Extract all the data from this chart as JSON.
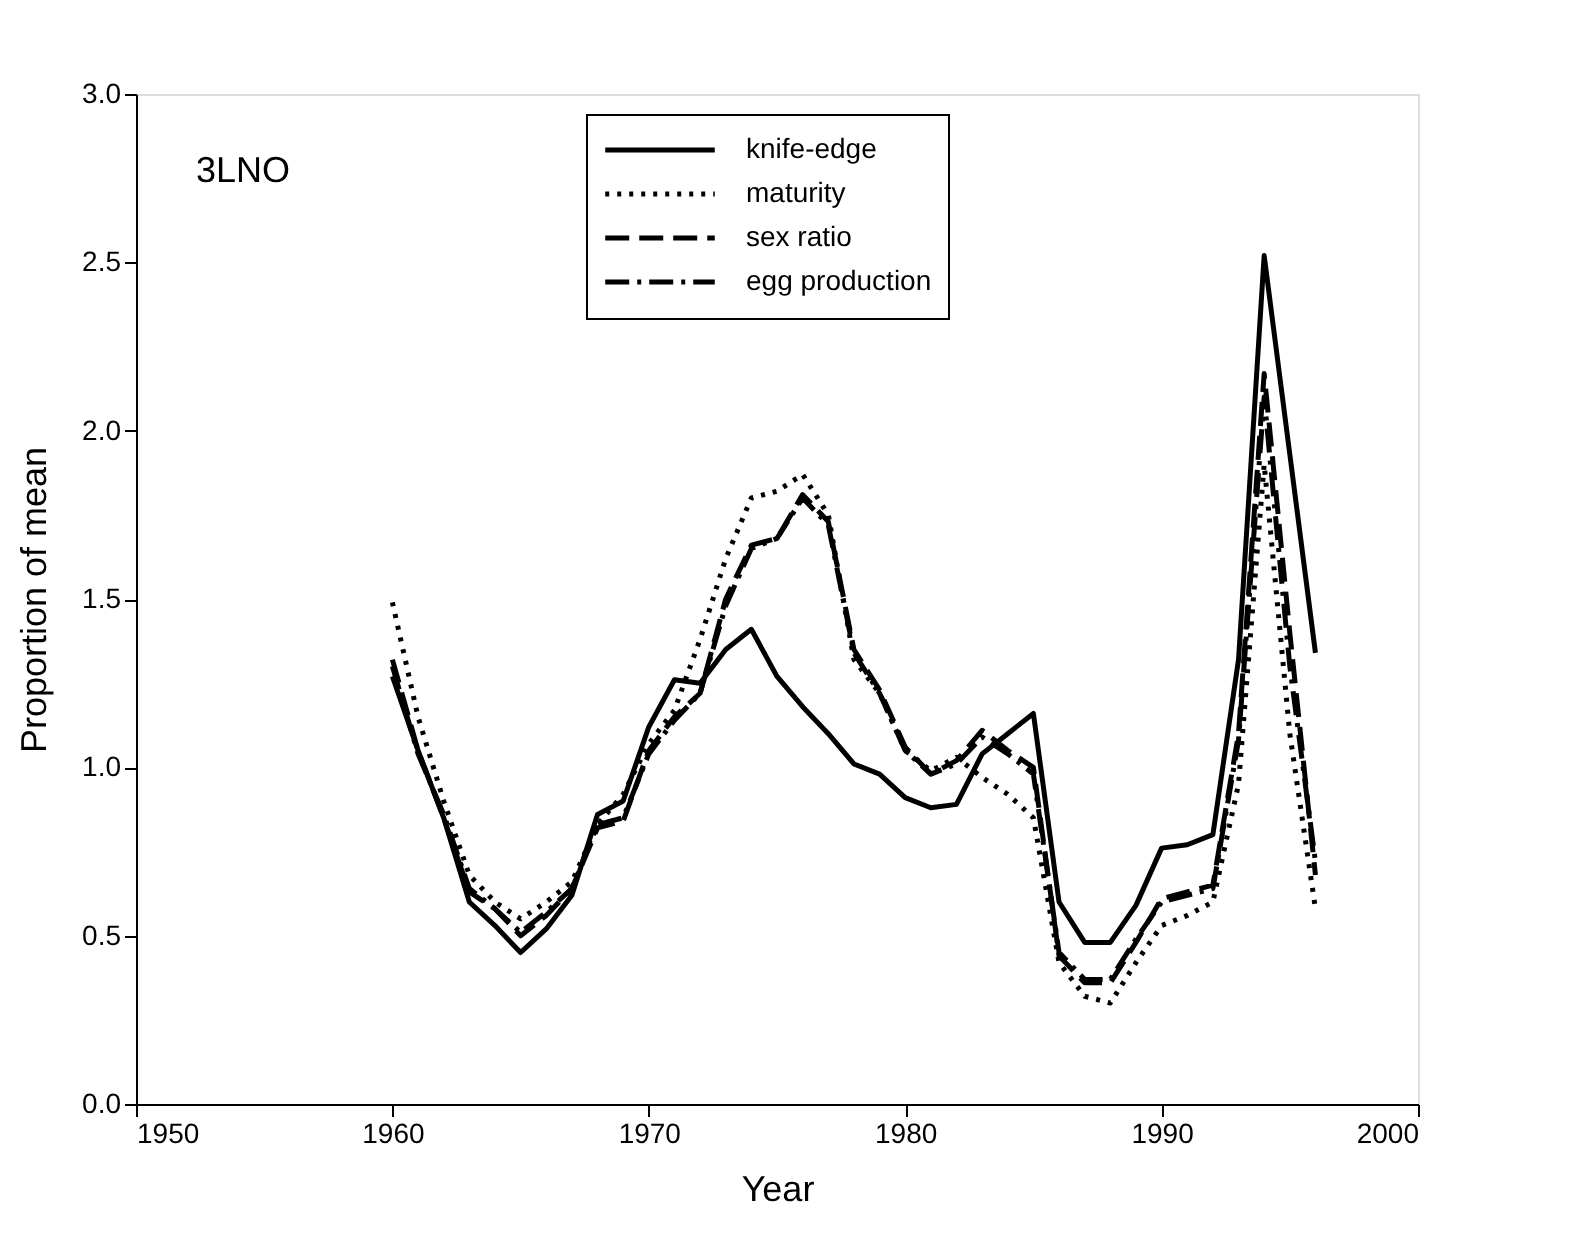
{
  "chart_data": {
    "type": "line",
    "xlabel": "Year",
    "ylabel": "Proportion of mean",
    "annotations": [
      "3LNO"
    ],
    "x": [
      1960,
      1961,
      1962,
      1963,
      1964,
      1965,
      1966,
      1967,
      1968,
      1969,
      1970,
      1971,
      1972,
      1973,
      1974,
      1975,
      1976,
      1977,
      1978,
      1979,
      1980,
      1981,
      1982,
      1983,
      1984,
      1985,
      1986,
      1987,
      1988,
      1989,
      1990,
      1991,
      1992,
      1993,
      1994,
      1995,
      1996
    ],
    "series": [
      {
        "name": "knife-edge",
        "color": "#000000",
        "line_style": "solid",
        "values": [
          1.27,
          1.05,
          0.85,
          0.6,
          0.53,
          0.45,
          0.52,
          0.62,
          0.86,
          0.9,
          1.12,
          1.26,
          1.25,
          1.35,
          1.41,
          1.27,
          1.18,
          1.1,
          1.01,
          0.98,
          0.91,
          0.88,
          0.89,
          1.04,
          1.1,
          1.16,
          0.6,
          0.48,
          0.48,
          0.59,
          0.76,
          0.77,
          0.8,
          1.32,
          2.52,
          1.93,
          1.34
        ]
      },
      {
        "name": "maturity",
        "color": "#000000",
        "line_style": "dotted",
        "values": [
          1.49,
          1.15,
          0.9,
          0.68,
          0.6,
          0.55,
          0.6,
          0.66,
          0.83,
          0.92,
          1.07,
          1.17,
          1.38,
          1.62,
          1.8,
          1.82,
          1.87,
          1.75,
          1.32,
          1.22,
          1.05,
          0.99,
          1.03,
          0.97,
          0.92,
          0.85,
          0.42,
          0.32,
          0.3,
          0.42,
          0.53,
          0.56,
          0.6,
          0.95,
          1.9,
          1.1,
          0.58
        ]
      },
      {
        "name": "sex ratio",
        "color": "#000000",
        "line_style": "dashed",
        "values": [
          1.32,
          1.05,
          0.85,
          0.63,
          0.58,
          0.5,
          0.56,
          0.64,
          0.82,
          0.84,
          1.05,
          1.15,
          1.22,
          1.5,
          1.66,
          1.68,
          1.81,
          1.73,
          1.35,
          1.23,
          1.06,
          0.98,
          1.02,
          1.11,
          1.05,
          1.0,
          0.44,
          0.36,
          0.36,
          0.48,
          0.61,
          0.63,
          0.65,
          1.1,
          2.17,
          1.4,
          0.68
        ]
      },
      {
        "name": "egg production",
        "color": "#000000",
        "line_style": "dashdot",
        "values": [
          1.3,
          1.04,
          0.86,
          0.64,
          0.58,
          0.51,
          0.57,
          0.64,
          0.83,
          0.85,
          1.04,
          1.14,
          1.22,
          1.48,
          1.65,
          1.68,
          1.8,
          1.72,
          1.34,
          1.22,
          1.05,
          0.98,
          1.01,
          1.09,
          1.04,
          0.98,
          0.45,
          0.37,
          0.37,
          0.49,
          0.6,
          0.62,
          0.64,
          1.08,
          2.1,
          1.3,
          0.72
        ]
      }
    ],
    "xlim": [
      1950,
      2000
    ],
    "xticks": [
      1950,
      1960,
      1970,
      1980,
      1990,
      2000
    ],
    "ylim": [
      0,
      3
    ],
    "yticks": [
      {
        "value": 0,
        "label": "0.0"
      },
      {
        "value": 0.5,
        "label": "0.5"
      },
      {
        "value": 1,
        "label": "1.0"
      },
      {
        "value": 1.5,
        "label": "1.5"
      },
      {
        "value": 2,
        "label": "2.0"
      },
      {
        "value": 2.5,
        "label": "2.5"
      },
      {
        "value": 3,
        "label": "3.0"
      }
    ],
    "grid": false,
    "legend": "top"
  }
}
